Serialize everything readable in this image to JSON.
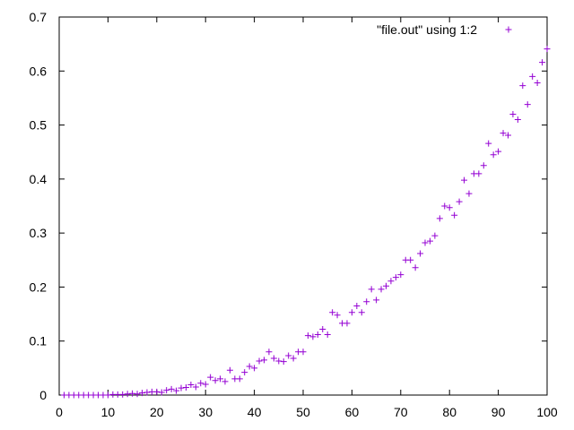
{
  "chart_data": {
    "type": "scatter",
    "title": "",
    "xlabel": "",
    "ylabel": "",
    "xlim": [
      0,
      100
    ],
    "ylim": [
      0,
      0.7
    ],
    "grid": false,
    "legend_position": "top-right",
    "marker": "plus",
    "x_ticks": [
      {
        "value": 0,
        "label": "0"
      },
      {
        "value": 10,
        "label": "10"
      },
      {
        "value": 20,
        "label": "20"
      },
      {
        "value": 30,
        "label": "30"
      },
      {
        "value": 40,
        "label": "40"
      },
      {
        "value": 50,
        "label": "50"
      },
      {
        "value": 60,
        "label": "60"
      },
      {
        "value": 70,
        "label": "70"
      },
      {
        "value": 80,
        "label": "80"
      },
      {
        "value": 90,
        "label": "90"
      },
      {
        "value": 100,
        "label": "100"
      }
    ],
    "y_ticks": [
      {
        "value": 0,
        "label": "0"
      },
      {
        "value": 0.1,
        "label": "0.1"
      },
      {
        "value": 0.2,
        "label": "0.2"
      },
      {
        "value": 0.3,
        "label": "0.3"
      },
      {
        "value": 0.4,
        "label": "0.4"
      },
      {
        "value": 0.5,
        "label": "0.5"
      },
      {
        "value": 0.6,
        "label": "0.6"
      },
      {
        "value": 0.7,
        "label": "0.7"
      }
    ],
    "series": [
      {
        "name": "\"file.out\" using 1:2",
        "color": "#9400d3",
        "points": [
          [
            1,
            0
          ],
          [
            2,
            0
          ],
          [
            3,
            0
          ],
          [
            4,
            0
          ],
          [
            5,
            0
          ],
          [
            6,
            0
          ],
          [
            7,
            0
          ],
          [
            8,
            0
          ],
          [
            9,
            0
          ],
          [
            10,
            0
          ],
          [
            11,
            0.001
          ],
          [
            12,
            0.001
          ],
          [
            13,
            0.001
          ],
          [
            14,
            0.002
          ],
          [
            15,
            0.003
          ],
          [
            16,
            0.002
          ],
          [
            17,
            0.004
          ],
          [
            18,
            0.005
          ],
          [
            19,
            0.006
          ],
          [
            20,
            0.006
          ],
          [
            21,
            0.005
          ],
          [
            22,
            0.009
          ],
          [
            23,
            0.011
          ],
          [
            24,
            0.008
          ],
          [
            25,
            0.013
          ],
          [
            26,
            0.014
          ],
          [
            27,
            0.019
          ],
          [
            28,
            0.015
          ],
          [
            29,
            0.022
          ],
          [
            30,
            0.02
          ],
          [
            31,
            0.033
          ],
          [
            32,
            0.027
          ],
          [
            33,
            0.03
          ],
          [
            34,
            0.025
          ],
          [
            35,
            0.046
          ],
          [
            36,
            0.03
          ],
          [
            37,
            0.03
          ],
          [
            38,
            0.042
          ],
          [
            39,
            0.053
          ],
          [
            40,
            0.05
          ],
          [
            41,
            0.063
          ],
          [
            42,
            0.065
          ],
          [
            43,
            0.08
          ],
          [
            44,
            0.068
          ],
          [
            45,
            0.063
          ],
          [
            46,
            0.062
          ],
          [
            47,
            0.073
          ],
          [
            48,
            0.068
          ],
          [
            49,
            0.08
          ],
          [
            50,
            0.08
          ],
          [
            51,
            0.11
          ],
          [
            52,
            0.108
          ],
          [
            53,
            0.112
          ],
          [
            54,
            0.122
          ],
          [
            55,
            0.112
          ],
          [
            56,
            0.153
          ],
          [
            57,
            0.148
          ],
          [
            58,
            0.133
          ],
          [
            59,
            0.133
          ],
          [
            60,
            0.153
          ],
          [
            61,
            0.165
          ],
          [
            62,
            0.153
          ],
          [
            63,
            0.173
          ],
          [
            64,
            0.196
          ],
          [
            65,
            0.176
          ],
          [
            66,
            0.196
          ],
          [
            67,
            0.202
          ],
          [
            68,
            0.211
          ],
          [
            69,
            0.218
          ],
          [
            70,
            0.223
          ],
          [
            71,
            0.25
          ],
          [
            72,
            0.25
          ],
          [
            73,
            0.236
          ],
          [
            74,
            0.262
          ],
          [
            75,
            0.282
          ],
          [
            76,
            0.285
          ],
          [
            77,
            0.295
          ],
          [
            78,
            0.327
          ],
          [
            79,
            0.35
          ],
          [
            80,
            0.347
          ],
          [
            81,
            0.333
          ],
          [
            82,
            0.358
          ],
          [
            83,
            0.398
          ],
          [
            84,
            0.373
          ],
          [
            85,
            0.41
          ],
          [
            86,
            0.41
          ],
          [
            87,
            0.425
          ],
          [
            88,
            0.466
          ],
          [
            89,
            0.445
          ],
          [
            90,
            0.451
          ],
          [
            91,
            0.485
          ],
          [
            92,
            0.481
          ],
          [
            93,
            0.52
          ],
          [
            94,
            0.51
          ],
          [
            95,
            0.573
          ],
          [
            96,
            0.538
          ],
          [
            97,
            0.59
          ],
          [
            98,
            0.578
          ],
          [
            99,
            0.616
          ],
          [
            100,
            0.641
          ]
        ]
      }
    ]
  }
}
